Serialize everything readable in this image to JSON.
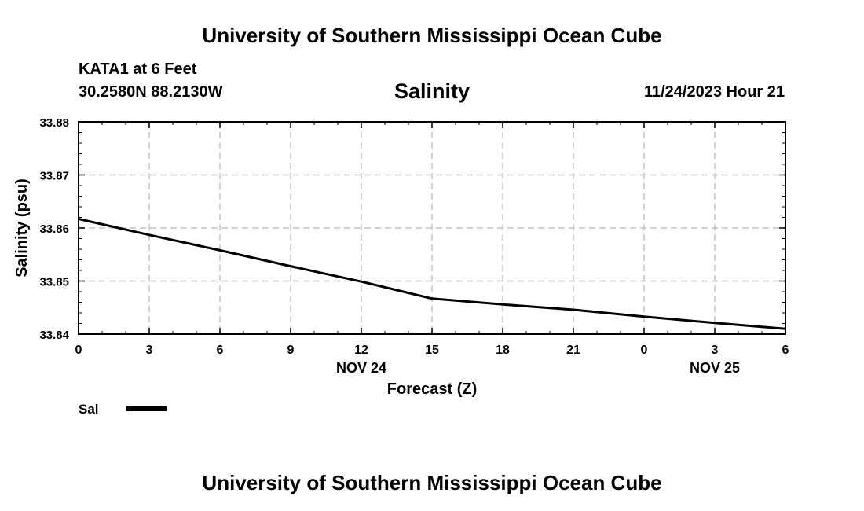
{
  "header": {
    "title": "University of Southern Mississippi Ocean Cube",
    "station": "KATA1 at 6 Feet",
    "coordinates": "30.2580N  88.2130W",
    "run_time": "11/24/2023 Hour 21"
  },
  "footer": {
    "title": "University of Southern Mississippi Ocean Cube"
  },
  "chart_data": {
    "type": "line",
    "title": "Salinity",
    "xlabel": "Forecast (Z)",
    "ylabel": "Salinity (psu)",
    "x_tick_labels": [
      "0",
      "3",
      "6",
      "9",
      "12",
      "15",
      "18",
      "21",
      "0",
      "3",
      "6"
    ],
    "date_labels": [
      {
        "label": "NOV 24",
        "at_index": 4
      },
      {
        "label": "NOV 25",
        "at_index": 9
      }
    ],
    "xlim": [
      0,
      30
    ],
    "ylim": [
      33.84,
      33.88
    ],
    "y_ticks": [
      33.84,
      33.85,
      33.86,
      33.87,
      33.88
    ],
    "y_tick_labels": [
      "33.84",
      "33.85",
      "33.86",
      "33.87",
      "33.88"
    ],
    "grid": true,
    "legend_placement": "bottom-left",
    "series": [
      {
        "name": "Sal",
        "color": "#000000",
        "x": [
          0,
          3,
          6,
          9,
          12,
          15,
          18,
          21,
          24,
          27,
          30
        ],
        "values": [
          33.8617,
          33.8587,
          33.8558,
          33.8528,
          33.8499,
          33.8467,
          33.8456,
          33.8446,
          33.8433,
          33.8421,
          33.841
        ]
      }
    ]
  }
}
